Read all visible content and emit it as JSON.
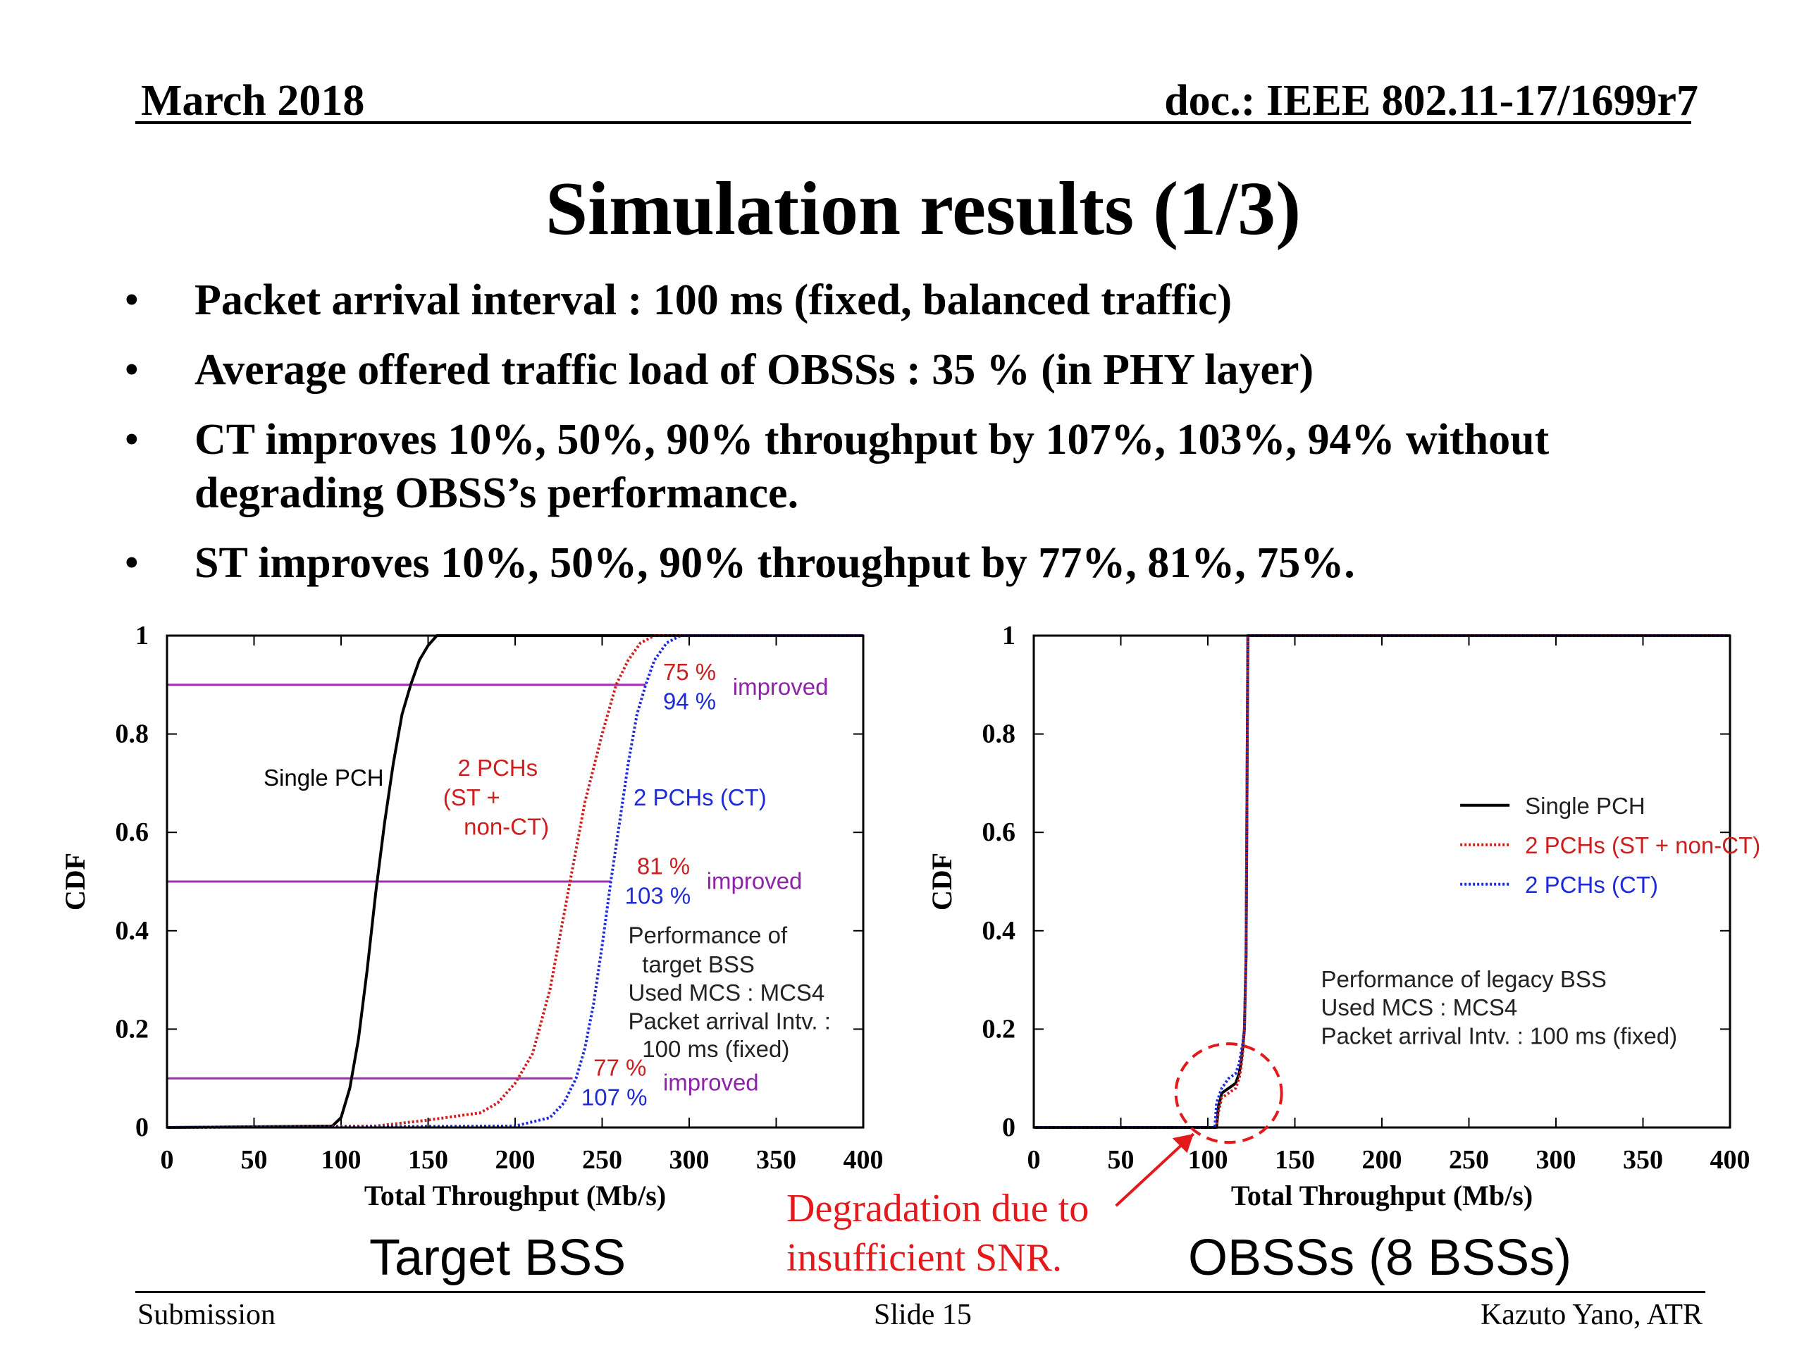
{
  "header": {
    "date": "March 2018",
    "doc": "doc.: IEEE 802.11-17/1699r7"
  },
  "title": "Simulation results (1/3)",
  "bullets": [
    "Packet arrival interval : 100 ms (fixed, balanced traffic)",
    "Average offered traffic load of OBSSs : 35 % (in PHY layer)",
    "CT improves 10%, 50%, 90% throughput by 107%, 103%, 94% without degrading OBSS’s performance.",
    "ST improves 10%, 50%, 90% throughput by 77%, 81%, 75%."
  ],
  "colors": {
    "single": "#000000",
    "st": "#cc2020",
    "ct": "#1f2bd6",
    "improved": "#8e23a8",
    "hline": "#9b2fb0",
    "annotation": "#e3191c"
  },
  "chart_data": [
    {
      "type": "line",
      "caption": "Target BSS",
      "xlabel": "Total Throughput (Mb/s)",
      "ylabel": "CDF",
      "xlim": [
        0,
        400
      ],
      "ylim": [
        0,
        1
      ],
      "xticks": [
        0,
        50,
        100,
        150,
        200,
        250,
        300,
        350,
        400
      ],
      "yticks": [
        0,
        0.2,
        0.4,
        0.6,
        0.8,
        1
      ],
      "ytick_labels": [
        "0",
        "0.2",
        "0.4",
        "0.6",
        "0.8",
        "1"
      ],
      "series": [
        {
          "name": "Single PCH",
          "style": "solid",
          "color": "#000000",
          "x": [
            0,
            95,
            100,
            105,
            110,
            115,
            120,
            125,
            130,
            135,
            140,
            145,
            150,
            155,
            160,
            400
          ],
          "y": [
            0,
            0.003,
            0.02,
            0.08,
            0.18,
            0.32,
            0.48,
            0.62,
            0.74,
            0.84,
            0.9,
            0.95,
            0.98,
            1.0,
            1.0,
            1.0
          ]
        },
        {
          "name": "2 PCHs (ST + non-CT)",
          "style": "dotted",
          "color": "#cc2020",
          "x": [
            0,
            120,
            150,
            180,
            190,
            200,
            210,
            220,
            230,
            240,
            250,
            258,
            265,
            272,
            280,
            290,
            400
          ],
          "y": [
            0,
            0.003,
            0.015,
            0.03,
            0.05,
            0.09,
            0.15,
            0.28,
            0.47,
            0.66,
            0.8,
            0.9,
            0.95,
            0.985,
            1.0,
            1.0,
            1.0
          ]
        },
        {
          "name": "2 PCHs (CT)",
          "style": "dotted",
          "color": "#1f2bd6",
          "x": [
            0,
            200,
            220,
            228,
            235,
            240,
            245,
            250,
            255,
            260,
            265,
            270,
            275,
            280,
            287,
            295,
            400
          ],
          "y": [
            0,
            0.003,
            0.02,
            0.05,
            0.1,
            0.16,
            0.25,
            0.37,
            0.5,
            0.62,
            0.74,
            0.84,
            0.9,
            0.95,
            0.985,
            1.0,
            1.0
          ]
        }
      ],
      "reference_lines": [
        {
          "y": 0.9,
          "x_end": 275
        },
        {
          "y": 0.5,
          "x_end": 255
        },
        {
          "y": 0.1,
          "x_end": 233
        }
      ],
      "annotations": [
        {
          "id": "lbl_single",
          "text": "Single PCH",
          "x": 90,
          "y": 0.695,
          "color": "#000000",
          "anchor": "middle"
        },
        {
          "id": "lbl_st1",
          "text": "2 PCHs",
          "x": 190,
          "y": 0.715,
          "color": "#cc2020",
          "anchor": "middle"
        },
        {
          "id": "lbl_st2",
          "text": "(ST +",
          "x": 175,
          "y": 0.655,
          "color": "#cc2020",
          "anchor": "middle"
        },
        {
          "id": "lbl_st3",
          "text": "non-CT)",
          "x": 195,
          "y": 0.595,
          "color": "#cc2020",
          "anchor": "middle"
        },
        {
          "id": "lbl_ct",
          "text": "2 PCHs (CT)",
          "x": 268,
          "y": 0.655,
          "color": "#1f2bd6",
          "anchor": "start"
        },
        {
          "id": "p75",
          "text": "75 %",
          "x": 285,
          "y": 0.91,
          "color": "#cc2020",
          "anchor": "start"
        },
        {
          "id": "p94",
          "text": "94 %",
          "x": 285,
          "y": 0.85,
          "color": "#1f2bd6",
          "anchor": "start"
        },
        {
          "id": "imp90",
          "text": "improved",
          "x": 325,
          "y": 0.88,
          "color": "#8e23a8",
          "anchor": "start"
        },
        {
          "id": "p81",
          "text": "81 %",
          "x": 270,
          "y": 0.515,
          "color": "#cc2020",
          "anchor": "start"
        },
        {
          "id": "p103",
          "text": "103 %",
          "x": 263,
          "y": 0.455,
          "color": "#1f2bd6",
          "anchor": "start"
        },
        {
          "id": "imp50",
          "text": "improved",
          "x": 310,
          "y": 0.485,
          "color": "#8e23a8",
          "anchor": "start"
        },
        {
          "id": "perf1",
          "text": "Performance of",
          "x": 265,
          "y": 0.375,
          "color": "#222222",
          "anchor": "start"
        },
        {
          "id": "perf2",
          "text": "target BSS",
          "x": 273,
          "y": 0.315,
          "color": "#222222",
          "anchor": "start"
        },
        {
          "id": "perf3",
          "text": "Used MCS : MCS4",
          "x": 265,
          "y": 0.258,
          "color": "#222222",
          "anchor": "start"
        },
        {
          "id": "perf4",
          "text": "Packet arrival Intv. :",
          "x": 265,
          "y": 0.2,
          "color": "#222222",
          "anchor": "start"
        },
        {
          "id": "perf5",
          "text": "100 ms (fixed)",
          "x": 273,
          "y": 0.143,
          "color": "#222222",
          "anchor": "start"
        },
        {
          "id": "p77",
          "text": "77 %",
          "x": 245,
          "y": 0.105,
          "color": "#cc2020",
          "anchor": "start"
        },
        {
          "id": "p107",
          "text": "107 %",
          "x": 238,
          "y": 0.045,
          "color": "#1f2bd6",
          "anchor": "start"
        },
        {
          "id": "imp10",
          "text": "improved",
          "x": 285,
          "y": 0.075,
          "color": "#8e23a8",
          "anchor": "start"
        }
      ]
    },
    {
      "type": "line",
      "caption": "OBSSs (8 BSSs)",
      "xlabel": "Total Throughput (Mb/s)",
      "ylabel": "CDF",
      "xlim": [
        0,
        400
      ],
      "ylim": [
        0,
        1
      ],
      "xticks": [
        0,
        50,
        100,
        150,
        200,
        250,
        300,
        350,
        400
      ],
      "yticks": [
        0,
        0.2,
        0.4,
        0.6,
        0.8,
        1
      ],
      "ytick_labels": [
        "0",
        "0.2",
        "0.4",
        "0.6",
        "0.8",
        "1"
      ],
      "series": [
        {
          "name": "Single PCH",
          "style": "solid",
          "color": "#000000",
          "x": [
            0,
            105,
            106,
            108,
            112,
            116,
            118,
            119,
            120,
            121,
            122,
            123,
            124,
            400
          ],
          "y": [
            0,
            0,
            0.04,
            0.07,
            0.08,
            0.09,
            0.11,
            0.13,
            0.16,
            0.2,
            0.35,
            1.0,
            1.0,
            1.0
          ]
        },
        {
          "name": "2 PCHs (ST + non-CT)",
          "style": "dotted",
          "color": "#cc2020",
          "x": [
            0,
            105,
            106,
            108,
            112,
            116,
            118,
            119,
            120,
            121,
            122,
            123,
            124,
            400
          ],
          "y": [
            0,
            0,
            0.03,
            0.06,
            0.07,
            0.08,
            0.1,
            0.12,
            0.15,
            0.2,
            0.35,
            1.0,
            1.0,
            1.0
          ]
        },
        {
          "name": "2 PCHs (CT)",
          "style": "dotted",
          "color": "#1f2bd6",
          "x": [
            0,
            104,
            105,
            108,
            112,
            116,
            118,
            119,
            120,
            121,
            122,
            123,
            124,
            400
          ],
          "y": [
            0,
            0,
            0.05,
            0.08,
            0.1,
            0.11,
            0.13,
            0.15,
            0.17,
            0.2,
            0.36,
            1.0,
            1.0,
            1.0
          ]
        }
      ],
      "legend": {
        "position": "center-right"
      },
      "annotations": [
        {
          "id": "ob1",
          "text": "Performance of legacy BSS",
          "x": 165,
          "y": 0.285,
          "color": "#222222",
          "anchor": "start"
        },
        {
          "id": "ob2",
          "text": "Used MCS : MCS4",
          "x": 165,
          "y": 0.228,
          "color": "#222222",
          "anchor": "start"
        },
        {
          "id": "ob3",
          "text": "Packet arrival Intv. : 100 ms (fixed)",
          "x": 165,
          "y": 0.17,
          "color": "#222222",
          "anchor": "start"
        }
      ],
      "highlight_circle": {
        "cx": 112,
        "cy": 0.07,
        "color": "#e3191c"
      }
    }
  ],
  "degradation_note": [
    "Degradation due to",
    "insufficient SNR."
  ],
  "footer": {
    "left": "Submission",
    "center": "Slide 15",
    "right": "Kazuto Yano, ATR"
  }
}
